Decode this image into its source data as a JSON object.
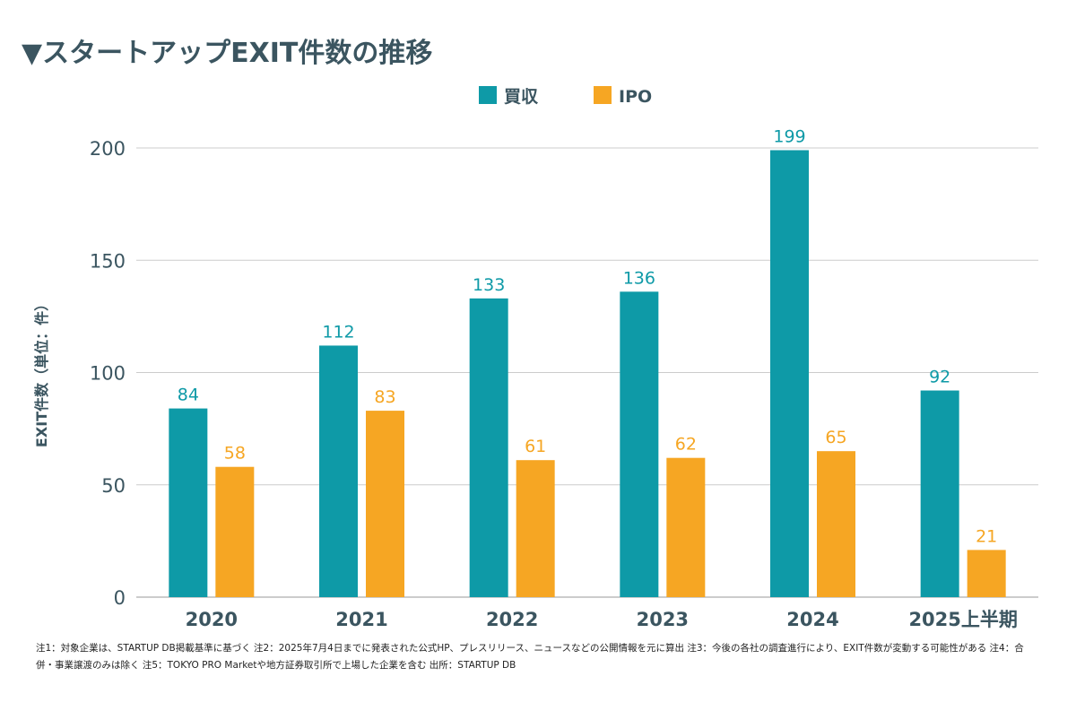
{
  "title": "▼スタートアップEXIT件数の推移",
  "footnote": "注1：対象企業は、STARTUP DB掲載基準に基づく 注2：2025年7月4日までに発表された公式HP、プレスリリース、ニュースなどの公開情報を元に算出 注3：今後の各社の調査進行により、EXIT件数が変動する可能性がある 注4：合併・事業譲渡のみは除く 注5：TOKYO PRO Marketや地方証券取引所で上場した企業を含む 出所：STARTUP DB",
  "colors": {
    "acquisition": "#0e9aa7",
    "ipo": "#f6a623",
    "text": "#3b5560",
    "grid": "#cccccc"
  },
  "chart_data": {
    "type": "bar",
    "title": "▼スタートアップEXIT件数の推移",
    "xlabel": "",
    "ylabel": "EXIT件数（単位：件）",
    "categories": [
      "2020",
      "2021",
      "2022",
      "2023",
      "2024",
      "2025上半期"
    ],
    "series": [
      {
        "name": "買収",
        "values": [
          84,
          112,
          133,
          136,
          199,
          92
        ]
      },
      {
        "name": "IPO",
        "values": [
          58,
          83,
          61,
          62,
          65,
          21
        ]
      }
    ],
    "data_labels": [
      [
        "84",
        "112",
        "133",
        "136",
        "199",
        "92"
      ],
      [
        "58",
        "83",
        "61",
        "62",
        "65",
        "21"
      ]
    ],
    "ylim": [
      0,
      200
    ],
    "yticks": [
      0,
      50,
      100,
      150,
      200
    ],
    "ytick_labels": [
      "0",
      "50",
      "100",
      "150",
      "200"
    ],
    "grid": true,
    "legend_position": "top-center"
  }
}
